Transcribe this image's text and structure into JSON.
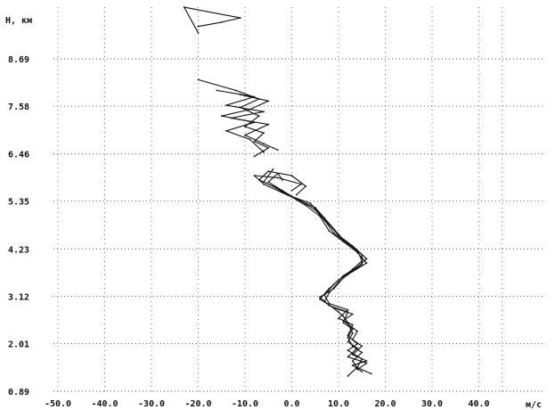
{
  "chart_data": {
    "type": "line",
    "title": "",
    "ylabel": "H, км",
    "xlabel": "м/с",
    "xlim": [
      -50,
      45
    ],
    "ylim": [
      0.89,
      9.8
    ],
    "x_ticks": [
      -50,
      -40,
      -30,
      -20,
      -10,
      0,
      10,
      20,
      30,
      40
    ],
    "x_tick_labels": [
      "-50.0",
      "-40.0",
      "-30.0",
      "-20.0",
      "-10.0",
      "0.0",
      "10.0",
      "20.0",
      "30.0",
      "40.0"
    ],
    "y_ticks": [
      0.89,
      2.01,
      3.12,
      4.23,
      5.35,
      6.46,
      7.58,
      8.69
    ],
    "y_tick_labels": [
      "0.89",
      "2.01",
      "3.12",
      "4.23",
      "5.35",
      "6.46",
      "7.58",
      "8.69"
    ],
    "grid": true,
    "series": [
      {
        "values": [
          [
            15,
            1.35
          ],
          [
            13,
            1.5
          ],
          [
            16,
            1.6
          ],
          [
            13,
            1.75
          ],
          [
            15,
            1.95
          ],
          [
            13,
            2.1
          ],
          [
            14,
            2.3
          ],
          [
            11,
            2.55
          ],
          [
            13,
            2.7
          ],
          [
            9,
            2.85
          ],
          [
            6,
            3.05
          ],
          [
            8,
            3.3
          ],
          [
            10,
            3.5
          ],
          [
            13,
            3.75
          ],
          [
            15,
            3.95
          ],
          [
            14,
            4.2
          ],
          [
            11,
            4.45
          ],
          [
            9,
            4.7
          ],
          [
            7,
            4.95
          ],
          [
            5,
            5.2
          ],
          [
            1,
            5.4
          ],
          [
            -2,
            5.6
          ],
          [
            -5,
            5.8
          ],
          [
            -3,
            6.0
          ],
          [
            -2,
            5.85
          ]
        ]
      },
      {
        "values": [
          [
            17,
            1.3
          ],
          [
            14,
            1.45
          ],
          [
            15,
            1.65
          ],
          [
            12,
            1.85
          ],
          [
            14,
            2.0
          ],
          [
            12,
            2.2
          ],
          [
            13,
            2.45
          ],
          [
            10,
            2.6
          ],
          [
            12,
            2.8
          ],
          [
            8,
            2.95
          ],
          [
            7,
            3.15
          ],
          [
            9,
            3.4
          ],
          [
            11,
            3.6
          ],
          [
            14,
            3.8
          ],
          [
            16,
            4.0
          ],
          [
            13,
            4.3
          ],
          [
            10,
            4.55
          ],
          [
            8,
            4.8
          ],
          [
            6,
            5.05
          ],
          [
            4,
            5.3
          ],
          [
            -1,
            5.5
          ],
          [
            -4,
            5.7
          ],
          [
            -7,
            5.85
          ],
          [
            -5,
            6.05
          ],
          [
            0,
            5.95
          ],
          [
            3,
            5.7
          ],
          [
            1,
            5.5
          ]
        ]
      },
      {
        "values": [
          [
            14,
            1.4
          ],
          [
            16,
            1.55
          ],
          [
            12,
            1.7
          ],
          [
            14,
            1.9
          ],
          [
            12,
            2.05
          ],
          [
            13,
            2.25
          ],
          [
            12,
            2.5
          ],
          [
            11,
            2.65
          ],
          [
            10,
            2.75
          ],
          [
            7,
            3.0
          ],
          [
            8,
            3.2
          ],
          [
            10,
            3.45
          ],
          [
            12,
            3.65
          ],
          [
            15,
            3.85
          ],
          [
            15,
            4.1
          ],
          [
            12,
            4.35
          ],
          [
            9,
            4.6
          ],
          [
            7,
            4.9
          ],
          [
            5,
            5.15
          ],
          [
            2,
            5.35
          ],
          [
            -2,
            5.55
          ],
          [
            -6,
            5.75
          ],
          [
            -8,
            5.95
          ],
          [
            -3,
            5.9
          ],
          [
            2,
            5.75
          ],
          [
            0,
            5.6
          ]
        ]
      },
      {
        "values": [
          [
            12,
            1.25
          ],
          [
            14,
            1.45
          ],
          [
            13,
            1.6
          ],
          [
            15,
            1.8
          ],
          [
            13,
            1.95
          ],
          [
            12,
            2.15
          ],
          [
            13,
            2.35
          ],
          [
            11,
            2.5
          ],
          [
            12,
            2.75
          ],
          [
            8,
            2.9
          ],
          [
            6,
            3.1
          ],
          [
            9,
            3.3
          ],
          [
            11,
            3.55
          ],
          [
            13,
            3.7
          ],
          [
            16,
            3.9
          ],
          [
            14,
            4.15
          ],
          [
            11,
            4.4
          ],
          [
            8,
            4.65
          ],
          [
            6,
            5.0
          ],
          [
            3,
            5.25
          ],
          [
            0,
            5.45
          ],
          [
            -3,
            5.65
          ],
          [
            -6,
            5.8
          ],
          [
            -4,
            6.1
          ]
        ]
      },
      {
        "values": [
          [
            -8,
            6.4
          ],
          [
            -5,
            6.6
          ],
          [
            -8,
            6.75
          ],
          [
            -6,
            6.95
          ],
          [
            -10,
            7.1
          ],
          [
            -7,
            7.35
          ],
          [
            -11,
            7.55
          ],
          [
            -7,
            7.75
          ],
          [
            -12,
            7.95
          ],
          [
            -20,
            8.2
          ]
        ]
      },
      {
        "values": [
          [
            -3,
            6.55
          ],
          [
            -6,
            6.7
          ],
          [
            -10,
            6.9
          ],
          [
            -5,
            7.15
          ],
          [
            -13,
            7.3
          ],
          [
            -6,
            7.45
          ],
          [
            -14,
            7.6
          ],
          [
            -8,
            7.8
          ],
          [
            -16,
            7.95
          ]
        ]
      },
      {
        "values": [
          [
            -6,
            6.5
          ],
          [
            -9,
            6.8
          ],
          [
            -14,
            7.0
          ],
          [
            -8,
            7.2
          ],
          [
            -15,
            7.35
          ],
          [
            -9,
            7.5
          ],
          [
            -5,
            7.7
          ],
          [
            -11,
            7.85
          ]
        ]
      },
      {
        "values": [
          [
            -20,
            9.45
          ],
          [
            -15,
            9.55
          ],
          [
            -11,
            9.65
          ],
          [
            -23,
            9.9
          ],
          [
            -20,
            9.3
          ]
        ]
      }
    ]
  }
}
